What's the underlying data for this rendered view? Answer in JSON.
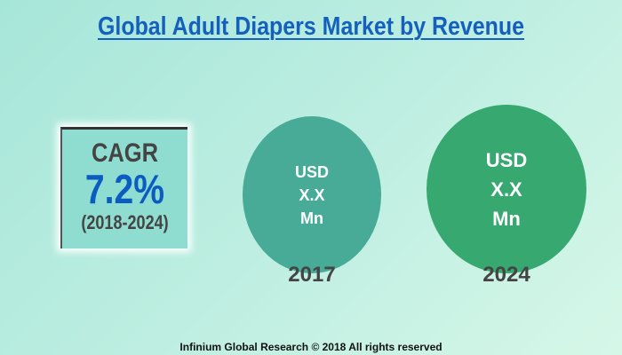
{
  "title": "Global Adult Diapers Market by Revenue",
  "cagr": {
    "label": "CAGR",
    "value": "7.2%",
    "period": "(2018-2024)"
  },
  "markets": [
    {
      "year": "2017",
      "line1": "USD",
      "line2": "X.X",
      "line3": "Mn",
      "color": "#48ab98"
    },
    {
      "year": "2024",
      "line1": "USD",
      "line2": "X.X",
      "line3": "Mn",
      "color": "#37a870"
    }
  ],
  "footer": "Infinium Global Research © 2018 All rights reserved",
  "colors": {
    "title": "#1560bd",
    "cagr_value": "#0a5cc0"
  }
}
